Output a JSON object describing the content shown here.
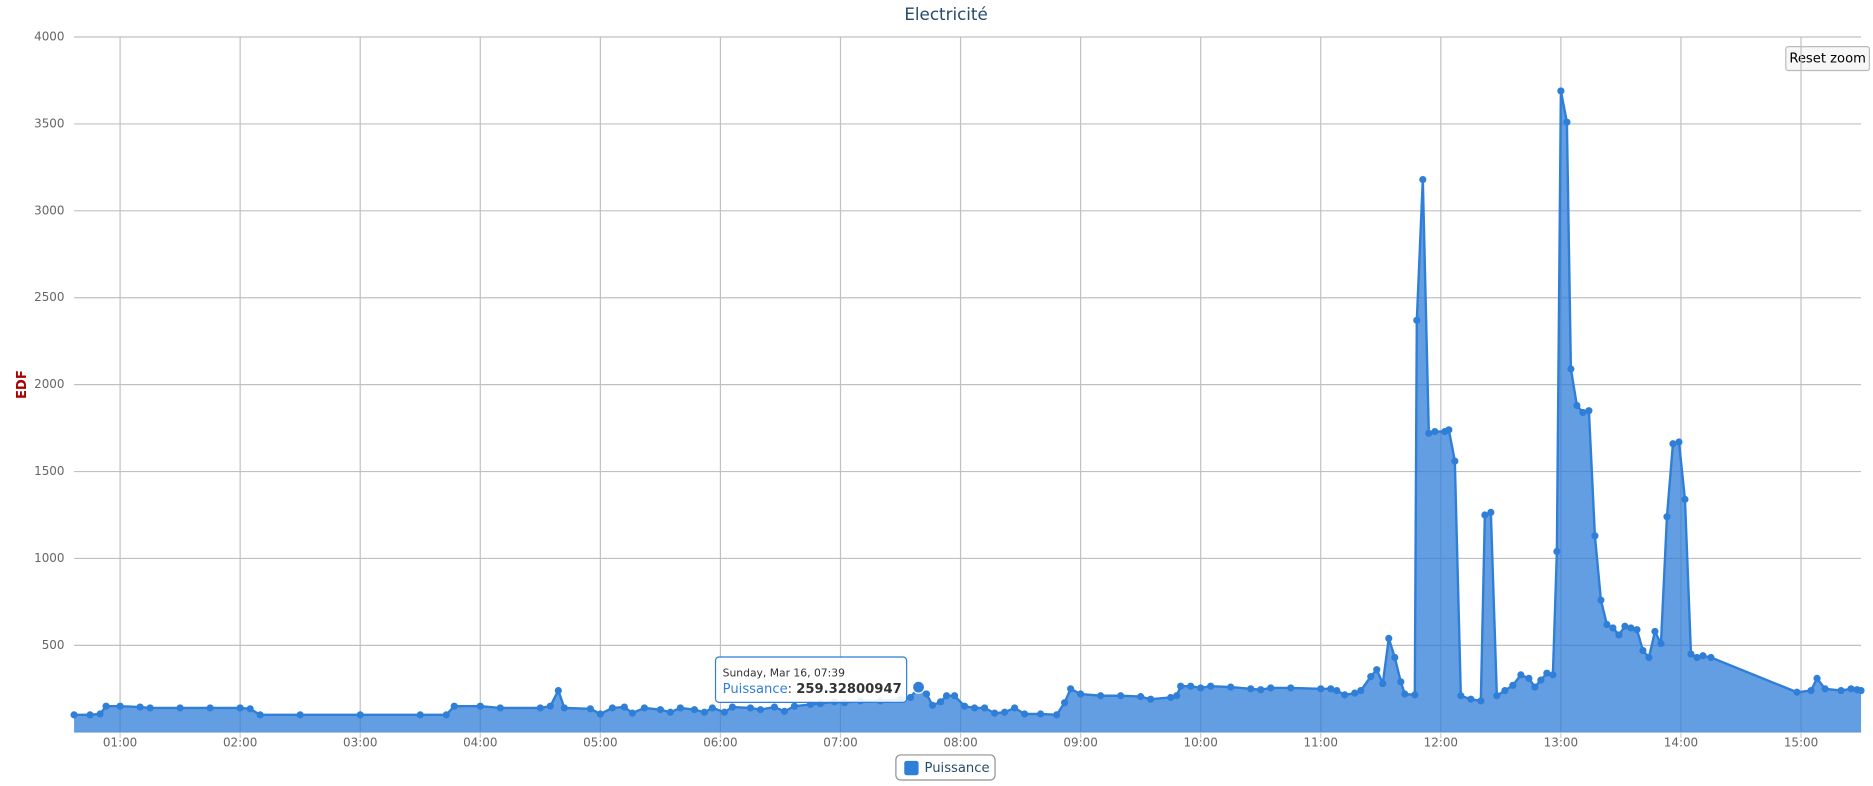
{
  "chart_data": {
    "type": "area",
    "title": "Electricité",
    "y_axis_title": "EDF",
    "reset_button": "Reset zoom",
    "xlim": [
      "00:37",
      "15:30"
    ],
    "xticks": [
      "01:00",
      "02:00",
      "03:00",
      "04:00",
      "05:00",
      "06:00",
      "07:00",
      "08:00",
      "09:00",
      "10:00",
      "11:00",
      "12:00",
      "13:00",
      "14:00",
      "15:00"
    ],
    "ylim": [
      0,
      4000
    ],
    "yticks": [
      500,
      1000,
      1500,
      2000,
      2500,
      3000,
      3500,
      4000
    ],
    "grid": true,
    "legend": "bottom",
    "x": [
      "00:37",
      "00:45",
      "00:50",
      "00:53",
      "01:00",
      "01:10",
      "01:15",
      "01:30",
      "01:45",
      "02:00",
      "02:05",
      "02:10",
      "02:30",
      "03:00",
      "03:30",
      "03:43",
      "03:47",
      "04:00",
      "04:10",
      "04:30",
      "04:35",
      "04:39",
      "04:42",
      "04:55",
      "05:00",
      "05:06",
      "05:12",
      "05:16",
      "05:22",
      "05:30",
      "05:35",
      "05:40",
      "05:47",
      "05:52",
      "05:56",
      "06:02",
      "06:06",
      "06:15",
      "06:20",
      "06:27",
      "06:32",
      "06:37",
      "06:45",
      "06:50",
      "06:57",
      "07:02",
      "07:10",
      "07:20",
      "07:30",
      "07:35",
      "07:39",
      "07:43",
      "07:46",
      "07:50",
      "07:53",
      "07:57",
      "08:02",
      "08:07",
      "08:12",
      "08:17",
      "08:22",
      "08:27",
      "08:32",
      "08:40",
      "08:48",
      "08:52",
      "08:55",
      "09:00",
      "09:10",
      "09:20",
      "09:30",
      "09:35",
      "09:45",
      "09:48",
      "09:50",
      "09:55",
      "10:00",
      "10:05",
      "10:15",
      "10:25",
      "10:30",
      "10:35",
      "10:45",
      "11:00",
      "11:05",
      "11:08",
      "11:12",
      "11:17",
      "11:20",
      "11:25",
      "11:28",
      "11:31",
      "11:34",
      "11:37",
      "11:40",
      "11:42",
      "11:47",
      "11:48",
      "11:51",
      "11:54",
      "11:57",
      "12:02",
      "12:04",
      "12:07",
      "12:10",
      "12:15",
      "12:20",
      "12:22",
      "12:25",
      "12:28",
      "12:32",
      "12:36",
      "12:40",
      "12:44",
      "12:47",
      "12:50",
      "12:53",
      "12:56",
      "12:58",
      "13:00",
      "13:03",
      "13:05",
      "13:08",
      "13:11",
      "13:14",
      "13:17",
      "13:20",
      "13:23",
      "13:26",
      "13:29",
      "13:32",
      "13:35",
      "13:38",
      "13:41",
      "13:44",
      "13:47",
      "13:50",
      "13:53",
      "13:56",
      "13:59",
      "14:02",
      "14:05",
      "14:08",
      "14:11",
      "14:15",
      "14:58",
      "15:05",
      "15:08",
      "15:12",
      "15:20",
      "15:25",
      "15:28",
      "15:30"
    ],
    "series": [
      {
        "name": "Puissance",
        "color": "#2f7ed8",
        "values": [
          100,
          100,
          105,
          150,
          150,
          145,
          140,
          140,
          140,
          140,
          135,
          100,
          100,
          100,
          100,
          100,
          150,
          150,
          140,
          140,
          150,
          240,
          140,
          135,
          105,
          140,
          145,
          110,
          140,
          130,
          115,
          140,
          130,
          115,
          140,
          115,
          145,
          140,
          130,
          145,
          120,
          150,
          160,
          165,
          175,
          170,
          180,
          180,
          190,
          200,
          259.32800947,
          220,
          155,
          175,
          210,
          210,
          150,
          140,
          140,
          110,
          115,
          140,
          105,
          105,
          100,
          170,
          250,
          220,
          210,
          210,
          205,
          190,
          200,
          210,
          265,
          265,
          255,
          265,
          260,
          250,
          245,
          255,
          255,
          250,
          250,
          240,
          215,
          225,
          240,
          320,
          360,
          280,
          540,
          430,
          290,
          220,
          215,
          2370,
          3180,
          1720,
          1730,
          1730,
          1740,
          1560,
          210,
          190,
          180,
          1250,
          1265,
          210,
          240,
          270,
          330,
          310,
          260,
          300,
          340,
          330,
          1040,
          3690,
          3510,
          2090,
          1880,
          1840,
          1850,
          1130,
          760,
          620,
          600,
          560,
          610,
          600,
          590,
          470,
          430,
          580,
          510,
          1240,
          1660,
          1670,
          1340,
          450,
          430,
          440,
          430,
          230,
          240,
          310,
          250,
          240,
          250,
          245,
          240
        ]
      }
    ],
    "tooltip": {
      "title": "Sunday, Mar 16, 07:39",
      "series": "Puissance",
      "separator": ": "
    }
  }
}
